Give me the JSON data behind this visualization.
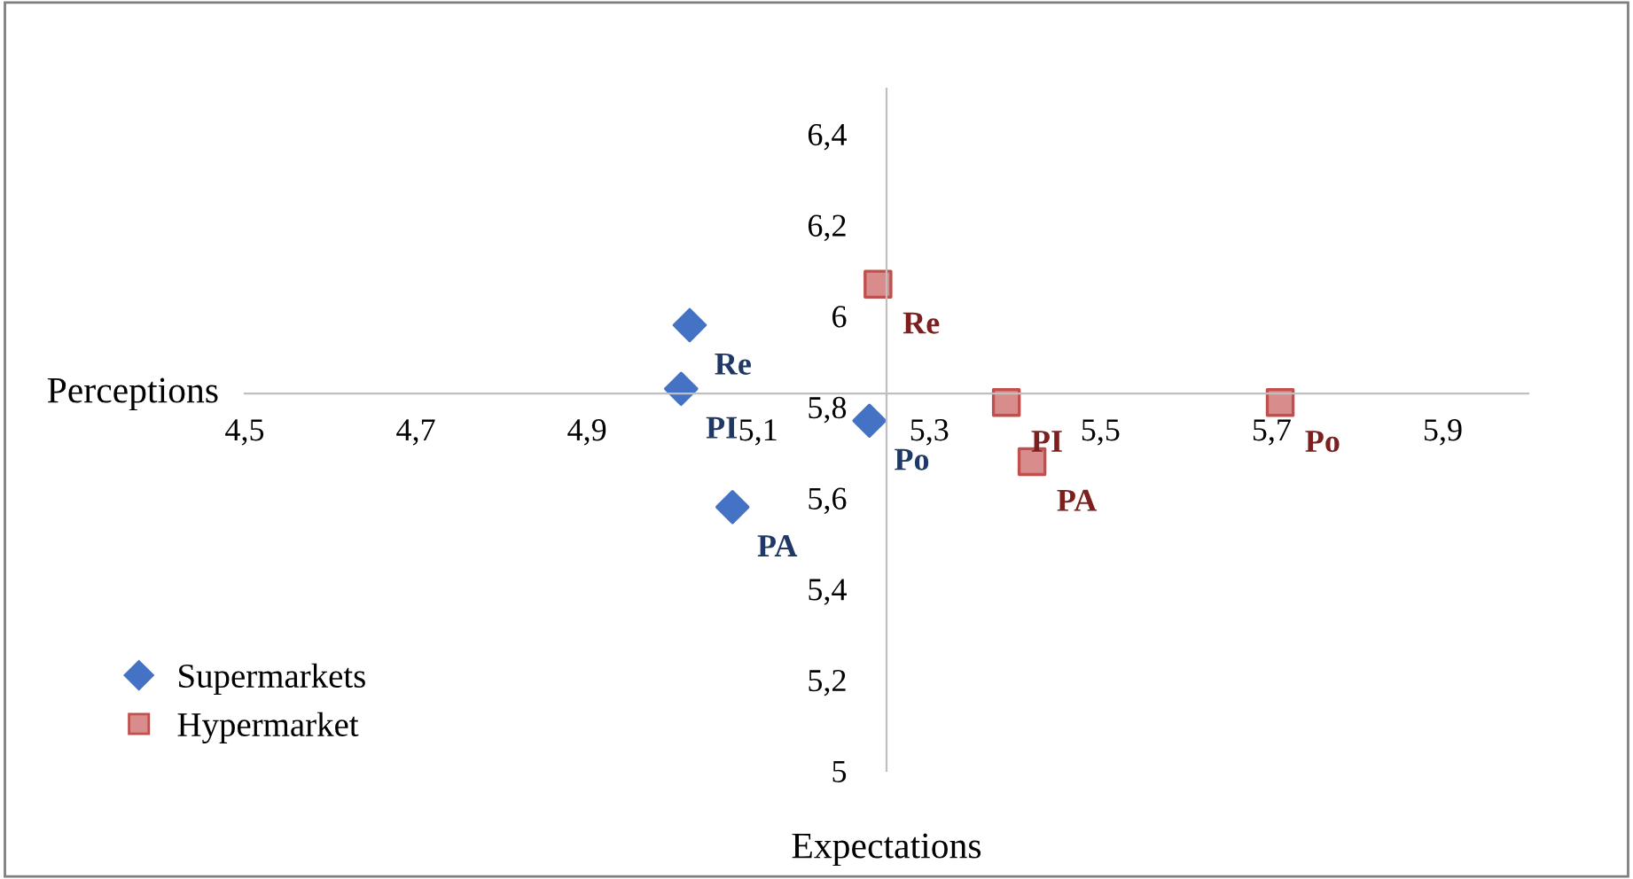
{
  "chart_data": {
    "type": "scatter",
    "xlabel": "Expectations",
    "ylabel": "Perceptions",
    "xlim": [
      4.5,
      6.0
    ],
    "xticks": [
      {
        "value": 4.5,
        "label": "4,5"
      },
      {
        "value": 4.7,
        "label": "4,7"
      },
      {
        "value": 4.9,
        "label": "4,9"
      },
      {
        "value": 5.1,
        "label": "5,1"
      },
      {
        "value": 5.3,
        "label": "5,3"
      },
      {
        "value": 5.5,
        "label": "5,5"
      },
      {
        "value": 5.7,
        "label": "5,7"
      },
      {
        "value": 5.9,
        "label": "5,9"
      }
    ],
    "ylim": [
      5.0,
      6.5
    ],
    "yticks": [
      {
        "value": 5.0,
        "label": "5"
      },
      {
        "value": 5.2,
        "label": "5,2"
      },
      {
        "value": 5.4,
        "label": "5,4"
      },
      {
        "value": 5.6,
        "label": "5,6"
      },
      {
        "value": 5.8,
        "label": "5,8"
      },
      {
        "value": 6.0,
        "label": "6"
      },
      {
        "value": 6.2,
        "label": "6,2"
      },
      {
        "value": 6.4,
        "label": "6,4"
      }
    ],
    "grid": false,
    "legend": "bottom left",
    "series": [
      {
        "name": "Supermarkets",
        "color": "#4472c4",
        "marker": "diamond",
        "x": [
          5.02,
          5.01,
          5.23,
          5.07
        ],
        "values": [
          5.98,
          5.84,
          5.77,
          5.58
        ]
      },
      {
        "name": "Hypermarket",
        "color": "#d98c8c",
        "marker": "square",
        "x": [
          5.24,
          5.39,
          5.71,
          5.42
        ],
        "values": [
          6.07,
          5.81,
          5.81,
          5.68
        ]
      }
    ],
    "annotations": [
      {
        "text": "Re",
        "x": 5.02,
        "y": 5.98
      },
      {
        "text": "PI",
        "x": 5.01,
        "y": 5.84
      },
      {
        "text": "Po",
        "x": 5.23,
        "y": 5.77
      },
      {
        "text": "PA",
        "x": 5.07,
        "y": 5.58
      },
      {
        "text": "Re",
        "x": 5.24,
        "y": 6.07
      },
      {
        "text": "PI",
        "x": 5.39,
        "y": 5.81
      },
      {
        "text": "Po",
        "x": 5.71,
        "y": 5.81
      },
      {
        "text": "PA",
        "x": 5.42,
        "y": 5.68
      }
    ]
  }
}
